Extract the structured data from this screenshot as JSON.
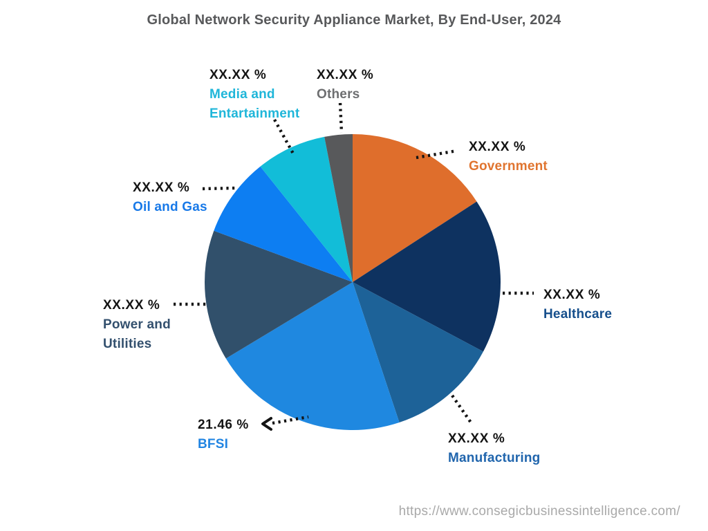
{
  "chart_data": {
    "type": "pie",
    "title": "Global Network Security Appliance Market, By End-User, 2024",
    "source_url": "https://www.consegicbusinessintelligence.com/",
    "direction": "clockwise",
    "start_angle_deg": 0,
    "legend_position": "callout-labels",
    "slices": [
      {
        "name": "Government",
        "name_lines": [
          "Government"
        ],
        "value_label": "XX.XX %",
        "angle_deg": 57.0,
        "percent_est": 15.8,
        "color": "#df6e2c",
        "label_color": "#e0742f"
      },
      {
        "name": "Healthcare",
        "name_lines": [
          "Healthcare"
        ],
        "value_label": "XX.XX %",
        "angle_deg": 61.0,
        "percent_est": 16.9,
        "color": "#0e3260",
        "label_color": "#164f8c"
      },
      {
        "name": "Manufacturing",
        "name_lines": [
          "Manufacturing"
        ],
        "value_label": "XX.XX %",
        "angle_deg": 43.6,
        "percent_est": 12.1,
        "color": "#1d6298",
        "label_color": "#2065ad"
      },
      {
        "name": "BFSI",
        "name_lines": [
          "BFSI"
        ],
        "value_label": "21.46 %",
        "angle_deg": 77.3,
        "percent_est": 21.46,
        "color": "#1f88e0",
        "label_color": "#2285e2"
      },
      {
        "name": "Power and Utilities",
        "name_lines": [
          "Power and",
          "Utilities"
        ],
        "value_label": "XX.XX %",
        "angle_deg": 51.4,
        "percent_est": 14.3,
        "color": "#31506b",
        "label_color": "#33506e"
      },
      {
        "name": "Oil and Gas",
        "name_lines": [
          "Oil and Gas"
        ],
        "value_label": "XX.XX %",
        "angle_deg": 31.1,
        "percent_est": 8.6,
        "color": "#0d7ef2",
        "label_color": "#1879e8"
      },
      {
        "name": "Media and Entartainment",
        "name_lines": [
          "Media and",
          "Entartainment"
        ],
        "value_label": "XX.XX %",
        "angle_deg": 27.6,
        "percent_est": 7.7,
        "color": "#12bdd8",
        "label_color": "#1fb6d9"
      },
      {
        "name": "Others",
        "name_lines": [
          "Others"
        ],
        "value_label": "XX.XX %",
        "angle_deg": 11.0,
        "percent_est": 3.1,
        "color": "#58595b",
        "label_color": "#6d6e70"
      }
    ]
  }
}
